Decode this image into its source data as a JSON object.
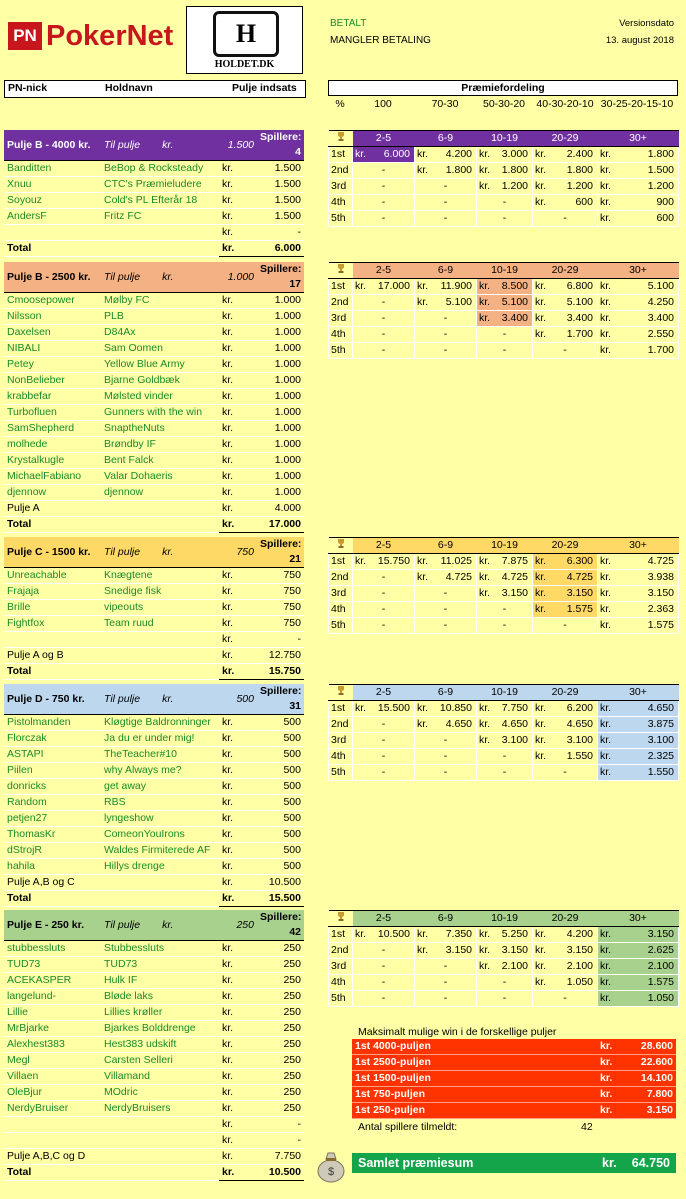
{
  "brand": {
    "pn": "PN",
    "name": "PokerNet",
    "holdet_mark": "H",
    "holdet_sub": "HOLDET.DK"
  },
  "status": {
    "paid": "BETALT",
    "unpaid": "MANGLER BETALING"
  },
  "version": {
    "label": "Versionsdato",
    "date": "13. august 2018"
  },
  "table_headers": {
    "nick": "PN-nick",
    "team": "Holdnavn",
    "stake": "Pulje indsats"
  },
  "prize_title": "Præmiefordeling",
  "prize_pct": [
    "%",
    "100",
    "70-30",
    "50-30-20",
    "40-30-20-10",
    "30-25-20-15-10"
  ],
  "colors": {
    "b4000": "#7030a0",
    "b2500": "#f4b183",
    "c": "#ffd966",
    "d": "#bdd7ee",
    "e": "#a9d18e",
    "background": "#ffffa6",
    "green_text": "#1b8a2a",
    "max_red": "#ff3300",
    "total_green": "#14a44a"
  },
  "pools": [
    {
      "header": {
        "name": "Pulje B - 4000 kr.",
        "til": "Til pulje",
        "kr": "kr.",
        "amt": "1.500",
        "sp": "Spillere:",
        "count": "4"
      },
      "rows": [
        {
          "nick": "Banditten",
          "team": "BeBop & Rocksteady",
          "kr": "kr.",
          "amt": "1.500"
        },
        {
          "nick": "Xnuu",
          "team": "CTC's Præmieludere",
          "kr": "kr.",
          "amt": "1.500"
        },
        {
          "nick": "Soyouz",
          "team": "Cold's PL Efterår 18",
          "kr": "kr.",
          "amt": "1.500"
        },
        {
          "nick": "AndersF",
          "team": "Fritz FC",
          "kr": "kr.",
          "amt": "1.500"
        },
        {
          "nick": "",
          "team": "",
          "kr": "kr.",
          "amt": "-"
        }
      ],
      "total": {
        "label": "Total",
        "kr": "kr.",
        "amt": "6.000"
      },
      "prize": {
        "header": [
          "2-5",
          "6-9",
          "10-19",
          "20-29",
          "30+"
        ],
        "rows": [
          {
            "pos": "1st",
            "v": [
              "6.000",
              "4.200",
              "3.000",
              "2.400",
              "1.800"
            ]
          },
          {
            "pos": "2nd",
            "v": [
              "-",
              "1.800",
              "1.800",
              "1.800",
              "1.500"
            ]
          },
          {
            "pos": "3rd",
            "v": [
              "-",
              "-",
              "1.200",
              "1.200",
              "1.200"
            ]
          },
          {
            "pos": "4th",
            "v": [
              "-",
              "-",
              "-",
              "600",
              "900"
            ]
          },
          {
            "pos": "5th",
            "v": [
              "-",
              "-",
              "-",
              "-",
              "600"
            ]
          }
        ]
      }
    },
    {
      "header": {
        "name": "Pulje B - 2500 kr.",
        "til": "Til pulje",
        "kr": "kr.",
        "amt": "1.000",
        "sp": "Spillere:",
        "count": "17"
      },
      "rows": [
        {
          "nick": "Cmoosepower",
          "team": "Mølby FC",
          "kr": "kr.",
          "amt": "1.000"
        },
        {
          "nick": "Nilsson",
          "team": "PLB",
          "kr": "kr.",
          "amt": "1.000"
        },
        {
          "nick": "Daxelsen",
          "team": "D84Ax",
          "kr": "kr.",
          "amt": "1.000"
        },
        {
          "nick": "NIBALI",
          "team": "Sam Oomen",
          "kr": "kr.",
          "amt": "1.000"
        },
        {
          "nick": "Petey",
          "team": "Yellow Blue Army",
          "kr": "kr.",
          "amt": "1.000"
        },
        {
          "nick": "NonBelieber",
          "team": "Bjarne Goldbæk",
          "kr": "kr.",
          "amt": "1.000"
        },
        {
          "nick": "krabbefar",
          "team": "Mølsted vinder",
          "kr": "kr.",
          "amt": "1.000"
        },
        {
          "nick": "Turbofluen",
          "team": "Gunners with the win",
          "kr": "kr.",
          "amt": "1.000"
        },
        {
          "nick": "SamShepherd",
          "team": "SnaptheNuts",
          "kr": "kr.",
          "amt": "1.000"
        },
        {
          "nick": "molhede",
          "team": "Brøndby IF",
          "kr": "kr.",
          "amt": "1.000"
        },
        {
          "nick": "Krystalkugle",
          "team": "Bent Falck",
          "kr": "kr.",
          "amt": "1.000"
        },
        {
          "nick": "MichaelFabiano",
          "team": "Valar Dohaeris",
          "kr": "kr.",
          "amt": "1.000"
        },
        {
          "nick": "djennow",
          "team": "djennow",
          "kr": "kr.",
          "amt": "1.000"
        },
        {
          "nick": "Pulje A",
          "team": "",
          "kr": "kr.",
          "amt": "4.000",
          "plain": true
        }
      ],
      "total": {
        "label": "Total",
        "kr": "kr.",
        "amt": "17.000"
      },
      "prize": {
        "header": [
          "2-5",
          "6-9",
          "10-19",
          "20-29",
          "30+"
        ],
        "rows": [
          {
            "pos": "1st",
            "v": [
              "17.000",
              "11.900",
              "8.500",
              "6.800",
              "5.100"
            ]
          },
          {
            "pos": "2nd",
            "v": [
              "-",
              "5.100",
              "5.100",
              "5.100",
              "4.250"
            ]
          },
          {
            "pos": "3rd",
            "v": [
              "-",
              "-",
              "3.400",
              "3.400",
              "3.400"
            ]
          },
          {
            "pos": "4th",
            "v": [
              "-",
              "-",
              "-",
              "1.700",
              "2.550"
            ]
          },
          {
            "pos": "5th",
            "v": [
              "-",
              "-",
              "-",
              "-",
              "1.700"
            ]
          }
        ]
      }
    },
    {
      "header": {
        "name": "Pulje C - 1500 kr.",
        "til": "Til pulje",
        "kr": "kr.",
        "amt": "750",
        "sp": "Spillere:",
        "count": "21"
      },
      "rows": [
        {
          "nick": "Unreachable",
          "team": "Knægtene",
          "kr": "kr.",
          "amt": "750"
        },
        {
          "nick": "Frajaja",
          "team": "Snedige fisk",
          "kr": "kr.",
          "amt": "750"
        },
        {
          "nick": "Brille",
          "team": "vipeouts",
          "kr": "kr.",
          "amt": "750"
        },
        {
          "nick": "Fightfox",
          "team": "Team ruud",
          "kr": "kr.",
          "amt": "750"
        },
        {
          "nick": "",
          "team": "",
          "kr": "kr.",
          "amt": "-"
        },
        {
          "nick": "Pulje A og B",
          "team": "",
          "kr": "kr.",
          "amt": "12.750",
          "plain": true
        }
      ],
      "total": {
        "label": "Total",
        "kr": "kr.",
        "amt": "15.750"
      },
      "prize": {
        "header": [
          "2-5",
          "6-9",
          "10-19",
          "20-29",
          "30+"
        ],
        "rows": [
          {
            "pos": "1st",
            "v": [
              "15.750",
              "11.025",
              "7.875",
              "6.300",
              "4.725"
            ]
          },
          {
            "pos": "2nd",
            "v": [
              "-",
              "4.725",
              "4.725",
              "4.725",
              "3.938"
            ]
          },
          {
            "pos": "3rd",
            "v": [
              "-",
              "-",
              "3.150",
              "3.150",
              "3.150"
            ]
          },
          {
            "pos": "4th",
            "v": [
              "-",
              "-",
              "-",
              "1.575",
              "2.363"
            ]
          },
          {
            "pos": "5th",
            "v": [
              "-",
              "-",
              "-",
              "-",
              "1.575"
            ]
          }
        ]
      }
    },
    {
      "header": {
        "name": "Pulje D - 750 kr.",
        "til": "Til pulje",
        "kr": "kr.",
        "amt": "500",
        "sp": "Spillere:",
        "count": "31"
      },
      "rows": [
        {
          "nick": "Pistolmanden",
          "team": "Kløgtige Baldronninger",
          "kr": "kr.",
          "amt": "500"
        },
        {
          "nick": "Florczak",
          "team": "Ja du er under mig!",
          "kr": "kr.",
          "amt": "500"
        },
        {
          "nick": "ASTAPI",
          "team": "TheTeacher#10",
          "kr": "kr.",
          "amt": "500"
        },
        {
          "nick": "Piilen",
          "team": "why Always me?",
          "kr": "kr.",
          "amt": "500"
        },
        {
          "nick": "donricks",
          "team": "get away",
          "kr": "kr.",
          "amt": "500"
        },
        {
          "nick": "Random",
          "team": "RBS",
          "kr": "kr.",
          "amt": "500"
        },
        {
          "nick": "petjen27",
          "team": "lyngeshow",
          "kr": "kr.",
          "amt": "500"
        },
        {
          "nick": "ThomasKr",
          "team": "ComeonYouIrons",
          "kr": "kr.",
          "amt": "500"
        },
        {
          "nick": "dStrojR",
          "team": "Waldes Firmiterede AF",
          "kr": "kr.",
          "amt": "500"
        },
        {
          "nick": "hahila",
          "team": "Hillys drenge",
          "kr": "kr.",
          "amt": "500"
        },
        {
          "nick": "Pulje A,B og C",
          "team": "",
          "kr": "kr.",
          "amt": "10.500",
          "plain": true
        }
      ],
      "total": {
        "label": "Total",
        "kr": "kr.",
        "amt": "15.500"
      },
      "prize": {
        "header": [
          "2-5",
          "6-9",
          "10-19",
          "20-29",
          "30+"
        ],
        "rows": [
          {
            "pos": "1st",
            "v": [
              "15.500",
              "10.850",
              "7.750",
              "6.200",
              "4.650"
            ]
          },
          {
            "pos": "2nd",
            "v": [
              "-",
              "4.650",
              "4.650",
              "4.650",
              "3.875"
            ]
          },
          {
            "pos": "3rd",
            "v": [
              "-",
              "-",
              "3.100",
              "3.100",
              "3.100"
            ]
          },
          {
            "pos": "4th",
            "v": [
              "-",
              "-",
              "-",
              "1.550",
              "2.325"
            ]
          },
          {
            "pos": "5th",
            "v": [
              "-",
              "-",
              "-",
              "-",
              "1.550"
            ]
          }
        ]
      }
    },
    {
      "header": {
        "name": "Pulje E - 250 kr.",
        "til": "Til pulje",
        "kr": "kr.",
        "amt": "250",
        "sp": "Spillere:",
        "count": "42"
      },
      "rows": [
        {
          "nick": "stubbessluts",
          "team": "Stubbessluts",
          "kr": "kr.",
          "amt": "250"
        },
        {
          "nick": "TUD73",
          "team": "TUD73",
          "kr": "kr.",
          "amt": "250"
        },
        {
          "nick": "ACEKASPER",
          "team": "Hulk IF",
          "kr": "kr.",
          "amt": "250"
        },
        {
          "nick": "langelund-",
          "team": "Bløde laks",
          "kr": "kr.",
          "amt": "250"
        },
        {
          "nick": "Lillie",
          "team": "Lillies krøller",
          "kr": "kr.",
          "amt": "250"
        },
        {
          "nick": "MrBjarke",
          "team": "Bjarkes Bolddrenge",
          "kr": "kr.",
          "amt": "250"
        },
        {
          "nick": "Alexhest383",
          "team": "Hest383 udskift",
          "kr": "kr.",
          "amt": "250"
        },
        {
          "nick": "Megl",
          "team": "Carsten Selleri",
          "kr": "kr.",
          "amt": "250"
        },
        {
          "nick": "Villaen",
          "team": "Villamand",
          "kr": "kr.",
          "amt": "250"
        },
        {
          "nick": "OleBjur",
          "team": "MOdric",
          "kr": "kr.",
          "amt": "250"
        },
        {
          "nick": "NerdyBruiser",
          "team": "NerdyBruisers",
          "kr": "kr.",
          "amt": "250"
        },
        {
          "nick": "",
          "team": "",
          "kr": "kr.",
          "amt": "-"
        },
        {
          "nick": "",
          "team": "",
          "kr": "kr.",
          "amt": "-"
        },
        {
          "nick": "Pulje A,B,C og D",
          "team": "",
          "kr": "kr.",
          "amt": "7.750",
          "plain": true
        }
      ],
      "total": {
        "label": "Total",
        "kr": "kr.",
        "amt": "10.500"
      },
      "prize": {
        "header": [
          "2-5",
          "6-9",
          "10-19",
          "20-29",
          "30+"
        ],
        "rows": [
          {
            "pos": "1st",
            "v": [
              "10.500",
              "7.350",
              "5.250",
              "4.200",
              "3.150"
            ]
          },
          {
            "pos": "2nd",
            "v": [
              "-",
              "3.150",
              "3.150",
              "3.150",
              "2.625"
            ]
          },
          {
            "pos": "3rd",
            "v": [
              "-",
              "-",
              "2.100",
              "2.100",
              "2.100"
            ]
          },
          {
            "pos": "4th",
            "v": [
              "-",
              "-",
              "-",
              "1.050",
              "1.575"
            ]
          },
          {
            "pos": "5th",
            "v": [
              "-",
              "-",
              "-",
              "-",
              "1.050"
            ]
          }
        ]
      }
    }
  ],
  "max_win": {
    "title": "Maksimalt mulige win i de forskellige puljer",
    "rows": [
      {
        "label": "1st 4000-puljen",
        "kr": "kr.",
        "amt": "28.600"
      },
      {
        "label": "1st 2500-puljen",
        "kr": "kr.",
        "amt": "22.600"
      },
      {
        "label": "1st 1500-puljen",
        "kr": "kr.",
        "amt": "14.100"
      },
      {
        "label": "1st 750-puljen",
        "kr": "kr.",
        "amt": "7.800"
      },
      {
        "label": "1st 250-puljen",
        "kr": "kr.",
        "amt": "3.150"
      }
    ],
    "players_label": "Antal spillere tilmeldt:",
    "players_count": "42"
  },
  "total_prize": {
    "label": "Samlet præmiesum",
    "kr": "kr.",
    "amt": "64.750"
  }
}
